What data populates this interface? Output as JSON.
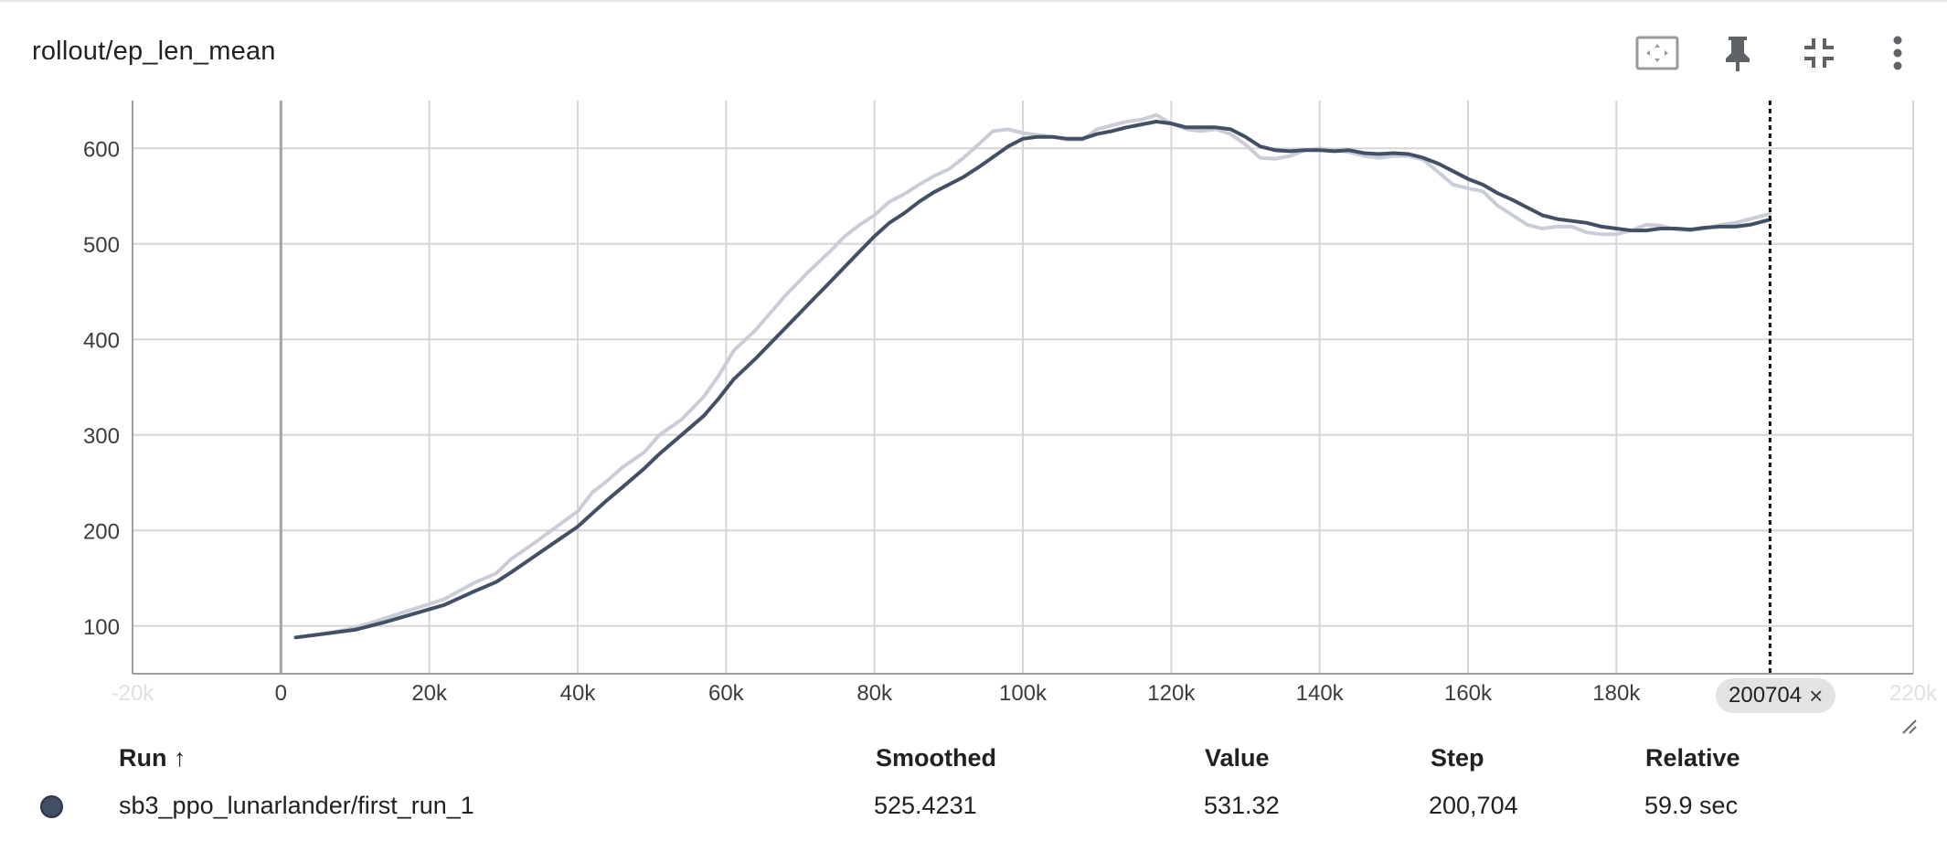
{
  "card": {
    "title": "rollout/ep_len_mean",
    "toolbar": [
      {
        "name": "fit-domain-icon"
      },
      {
        "name": "pin-icon"
      },
      {
        "name": "collapse-icon"
      },
      {
        "name": "more-vert-icon"
      }
    ]
  },
  "chart_data": {
    "type": "line",
    "title": "rollout/ep_len_mean",
    "xlabel": "",
    "ylabel": "",
    "xlim": [
      -20000,
      220000
    ],
    "ylim": [
      50,
      650
    ],
    "x_ticks": [
      -20000,
      0,
      20000,
      40000,
      60000,
      80000,
      100000,
      120000,
      140000,
      160000,
      180000,
      220000
    ],
    "x_tick_labels": [
      "-20k",
      "0",
      "20k",
      "40k",
      "60k",
      "80k",
      "100k",
      "120k",
      "140k",
      "160k",
      "180k",
      "220k"
    ],
    "y_ticks": [
      100,
      200,
      300,
      400,
      500,
      600
    ],
    "y_tick_labels": [
      "100",
      "200",
      "300",
      "400",
      "500",
      "600"
    ],
    "grid": true,
    "hover_step": 200704,
    "hover_step_label": "200704",
    "colors": {
      "smoothed": "#425066",
      "raw": "#c9cdd7",
      "grid": "#d6d6d6",
      "axis": "#9e9e9e",
      "zero_line": "#a3a3a3"
    },
    "series": [
      {
        "role": "raw",
        "x": [
          2000,
          6000,
          10000,
          14000,
          18000,
          22000,
          26000,
          29000,
          31000,
          34000,
          37000,
          40000,
          42000,
          44000,
          46000,
          49000,
          51000,
          54000,
          57000,
          59000,
          61000,
          64000,
          66000,
          68000,
          71000,
          74000,
          76000,
          78000,
          80000,
          82000,
          84000,
          86000,
          88000,
          90000,
          92000,
          94000,
          96000,
          98000,
          100000,
          102000,
          104000,
          106000,
          108000,
          110000,
          112000,
          114000,
          116000,
          118000,
          120000,
          122000,
          124000,
          126000,
          128000,
          130000,
          132000,
          134000,
          136000,
          138000,
          140000,
          142000,
          144000,
          146000,
          148000,
          150000,
          152000,
          154000,
          156000,
          158000,
          160000,
          162000,
          164000,
          166000,
          168000,
          170000,
          172000,
          174000,
          176000,
          178000,
          180000,
          182000,
          184000,
          186000,
          188000,
          190000,
          192000,
          194000,
          196000,
          198000,
          200704
        ],
        "values": [
          88,
          92,
          98,
          108,
          118,
          128,
          145,
          155,
          170,
          186,
          203,
          220,
          240,
          252,
          266,
          282,
          300,
          316,
          340,
          362,
          388,
          410,
          428,
          446,
          470,
          492,
          508,
          520,
          530,
          544,
          552,
          562,
          571,
          578,
          590,
          604,
          618,
          620,
          616,
          614,
          612,
          609,
          609,
          620,
          624,
          628,
          630,
          635,
          626,
          620,
          618,
          620,
          615,
          604,
          590,
          589,
          592,
          598,
          600,
          598,
          596,
          592,
          590,
          592,
          592,
          588,
          575,
          562,
          558,
          555,
          540,
          530,
          520,
          516,
          518,
          518,
          512,
          510,
          510,
          514,
          520,
          519,
          515,
          514,
          516,
          520,
          522,
          526,
          531.32
        ]
      },
      {
        "role": "smoothed",
        "x": [
          2000,
          6000,
          10000,
          14000,
          18000,
          22000,
          26000,
          29000,
          31000,
          34000,
          37000,
          40000,
          42000,
          44000,
          46000,
          49000,
          51000,
          54000,
          57000,
          59000,
          61000,
          64000,
          66000,
          68000,
          71000,
          74000,
          76000,
          78000,
          80000,
          82000,
          84000,
          86000,
          88000,
          90000,
          92000,
          94000,
          96000,
          98000,
          100000,
          102000,
          104000,
          106000,
          108000,
          110000,
          112000,
          114000,
          116000,
          118000,
          120000,
          122000,
          124000,
          126000,
          128000,
          130000,
          132000,
          134000,
          136000,
          138000,
          140000,
          142000,
          144000,
          146000,
          148000,
          150000,
          152000,
          154000,
          156000,
          158000,
          160000,
          162000,
          164000,
          166000,
          168000,
          170000,
          172000,
          174000,
          176000,
          178000,
          180000,
          182000,
          184000,
          186000,
          188000,
          190000,
          192000,
          194000,
          196000,
          198000,
          200704
        ],
        "values": [
          88,
          92,
          96,
          104,
          113,
          122,
          136,
          146,
          156,
          172,
          188,
          204,
          218,
          232,
          245,
          265,
          280,
          300,
          320,
          338,
          358,
          380,
          396,
          412,
          436,
          460,
          476,
          492,
          508,
          522,
          532,
          544,
          554,
          562,
          570,
          580,
          591,
          602,
          610,
          612,
          612,
          610,
          610,
          615,
          618,
          622,
          625,
          628,
          626,
          622,
          622,
          622,
          620,
          612,
          602,
          598,
          597,
          598,
          598,
          597,
          598,
          595,
          594,
          595,
          594,
          590,
          584,
          576,
          568,
          562,
          553,
          546,
          538,
          530,
          526,
          524,
          522,
          518,
          516,
          514,
          514,
          516,
          516,
          515,
          517,
          518,
          518,
          520,
          525.42
        ]
      }
    ]
  },
  "hover_chip": {
    "label": "200704",
    "close_glyph": "×"
  },
  "table": {
    "headers": {
      "run": "Run ↑",
      "smoothed": "Smoothed",
      "value": "Value",
      "step": "Step",
      "relative": "Relative"
    },
    "rows": [
      {
        "run": "sb3_ppo_lunarlander/first_run_1",
        "smoothed": "525.4231",
        "value": "531.32",
        "step": "200,704",
        "relative": "59.9 sec",
        "color": "#425066"
      }
    ]
  }
}
